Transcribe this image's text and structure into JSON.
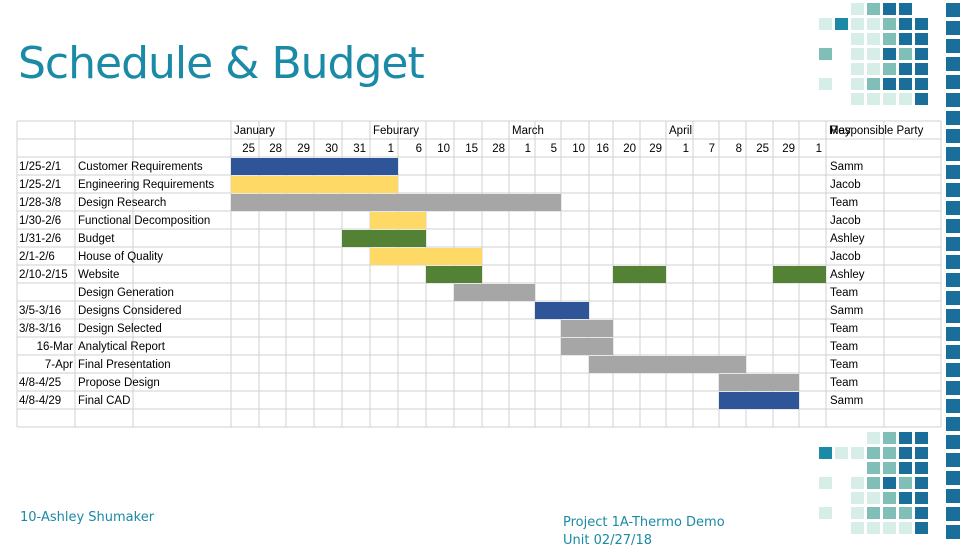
{
  "slide": {
    "title": "Schedule & Budget",
    "footer_left": "10-Ashley Shumaker",
    "footer_right_line1": "Project 1A-Thermo Demo",
    "footer_right_line2": "Unit 02/27/18"
  },
  "colors": {
    "teal": "#1b8aa6",
    "blue": "#2e5597",
    "yellow": "#ffd966",
    "gray": "#a6a6a6",
    "green": "#548235",
    "deco_dark": "#1a6f9a",
    "deco_mid": "#7fbfb8",
    "deco_light": "#d7ede8"
  },
  "chart_data": {
    "type": "table",
    "months": [
      {
        "label": "January",
        "start_col": 0
      },
      {
        "label": "Feburary",
        "start_col": 5
      },
      {
        "label": "March",
        "start_col": 10
      },
      {
        "label": "April",
        "start_col": 16
      },
      {
        "label": "May",
        "start_col": 22
      }
    ],
    "day_columns": [
      "25",
      "28",
      "29",
      "30",
      "31",
      "1",
      "6",
      "10",
      "15",
      "28",
      "1",
      "5",
      "10",
      "16",
      "20",
      "29",
      "1",
      "7",
      "8",
      "25",
      "29",
      "1"
    ],
    "responsible_header": "Responsible Party",
    "tasks": [
      {
        "dates": "1/25-2/1",
        "name": "Customer Requirements",
        "responsible": "Samm",
        "bars": [
          {
            "start": 0,
            "end": 6,
            "color": "blue"
          }
        ]
      },
      {
        "dates": "1/25-2/1",
        "name": "Engineering Requirements",
        "responsible": "Jacob",
        "bars": [
          {
            "start": 0,
            "end": 6,
            "color": "yellow"
          }
        ]
      },
      {
        "dates": "1/28-3/8",
        "name": "Design Research",
        "responsible": "Team",
        "bars": [
          {
            "start": 0,
            "end": 12,
            "color": "gray"
          }
        ]
      },
      {
        "dates": "1/30-2/6",
        "name": "Functional Decomposition",
        "responsible": "Jacob",
        "bars": [
          {
            "start": 5,
            "end": 7,
            "color": "yellow"
          }
        ]
      },
      {
        "dates": "1/31-2/6",
        "name": "Budget",
        "responsible": "Ashley",
        "bars": [
          {
            "start": 4,
            "end": 7,
            "color": "green"
          }
        ]
      },
      {
        "dates": "2/1-2/6",
        "name": "House of Quality",
        "responsible": "Jacob",
        "bars": [
          {
            "start": 5,
            "end": 9,
            "color": "yellow"
          }
        ]
      },
      {
        "dates": "2/10-2/15",
        "name": "Website",
        "responsible": "Ashley",
        "bars": [
          {
            "start": 7,
            "end": 9,
            "color": "green"
          },
          {
            "start": 14,
            "end": 16,
            "color": "green"
          },
          {
            "start": 20,
            "end": 22,
            "color": "green"
          }
        ]
      },
      {
        "dates": "",
        "name": "Design Generation",
        "responsible": "Team",
        "bars": [
          {
            "start": 8,
            "end": 11,
            "color": "gray"
          }
        ]
      },
      {
        "dates": "3/5-3/16",
        "name": "Designs Considered",
        "responsible": "Samm",
        "bars": [
          {
            "start": 11,
            "end": 13,
            "color": "blue"
          }
        ]
      },
      {
        "dates": "3/8-3/16",
        "name": "Design Selected",
        "responsible": "Team",
        "bars": [
          {
            "start": 12,
            "end": 14,
            "color": "gray"
          }
        ]
      },
      {
        "dates": "16-Mar",
        "name": "Analytical Report",
        "responsible": "Team",
        "bars": [
          {
            "start": 12,
            "end": 14,
            "color": "gray"
          }
        ]
      },
      {
        "dates": "7-Apr",
        "name": "Final Presentation",
        "responsible": "Team",
        "bars": [
          {
            "start": 13,
            "end": 19,
            "color": "gray"
          }
        ]
      },
      {
        "dates": "4/8-4/25",
        "name": "Propose Design",
        "responsible": "Team",
        "bars": [
          {
            "start": 18,
            "end": 21,
            "color": "gray"
          }
        ]
      },
      {
        "dates": "4/8-4/29",
        "name": "Final CAD",
        "responsible": "Samm",
        "bars": [
          {
            "start": 18,
            "end": 21,
            "color": "blue"
          }
        ]
      }
    ]
  }
}
